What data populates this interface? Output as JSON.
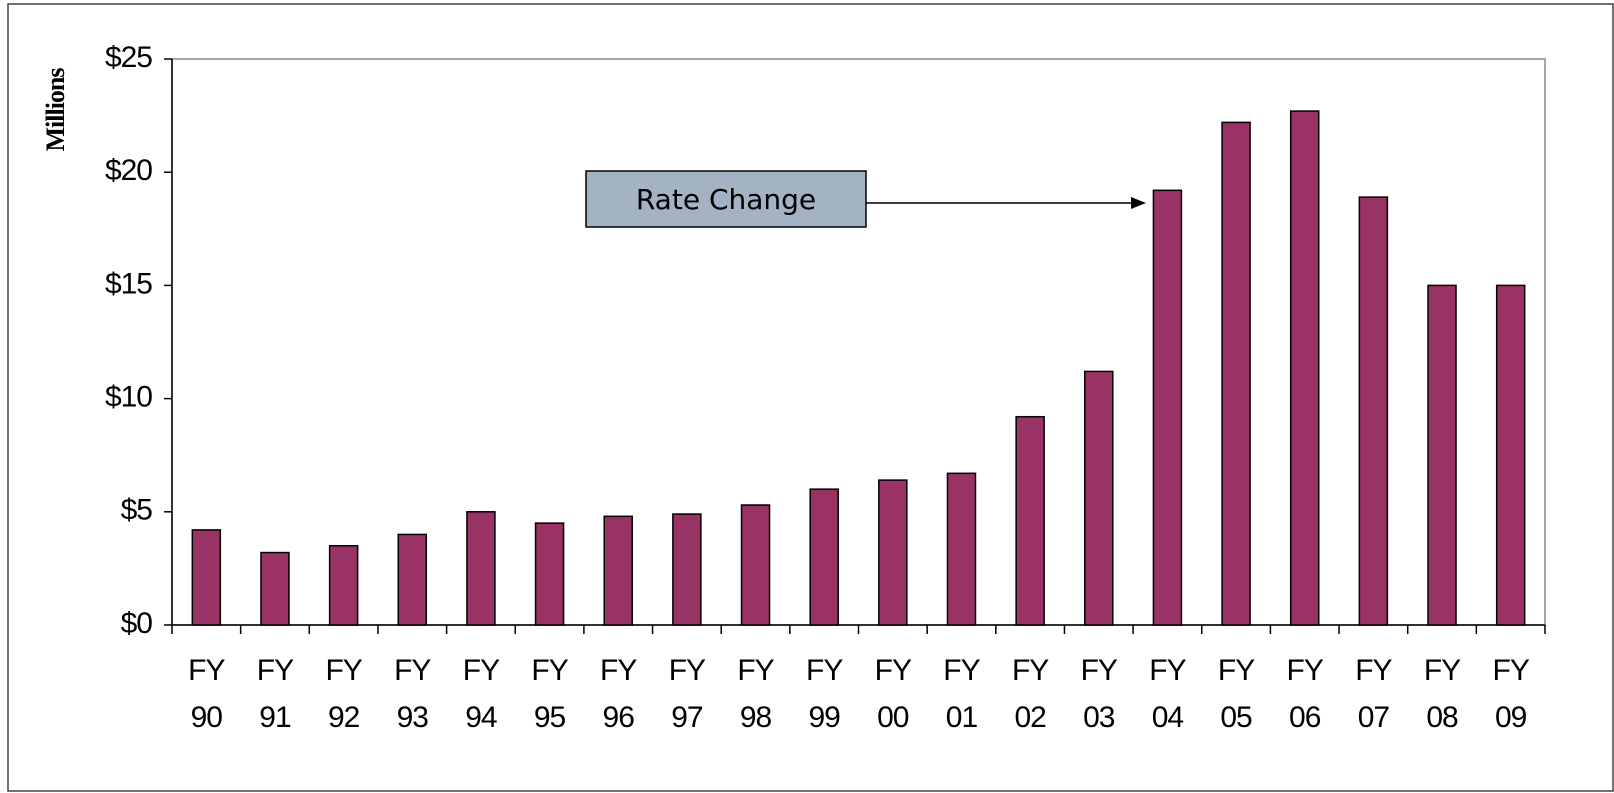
{
  "chart_data": {
    "type": "bar",
    "y_axis_label": "Millions",
    "annotation": "Rate Change",
    "categories": [
      "FY 90",
      "FY 91",
      "FY 92",
      "FY 93",
      "FY 94",
      "FY 95",
      "FY 96",
      "FY 97",
      "FY 98",
      "FY 99",
      "FY 00",
      "FY 01",
      "FY 02",
      "FY 03",
      "FY 04",
      "FY 05",
      "FY 06",
      "FY 07",
      "FY 08",
      "FY 09"
    ],
    "values": [
      4.2,
      3.2,
      3.5,
      4.0,
      5.0,
      4.5,
      4.8,
      4.9,
      5.3,
      6.0,
      6.4,
      6.7,
      9.2,
      11.2,
      19.2,
      22.2,
      22.7,
      18.9,
      15.0,
      15.0
    ],
    "color": "#993366",
    "ylim": [
      0,
      25
    ],
    "yticks": [
      {
        "value": 0,
        "label": "$0"
      },
      {
        "value": 5,
        "label": "$5"
      },
      {
        "value": 10,
        "label": "$10"
      },
      {
        "value": 15,
        "label": "$15"
      },
      {
        "value": 20,
        "label": "$20"
      },
      {
        "value": 25,
        "label": "$25"
      }
    ],
    "grid": false
  }
}
